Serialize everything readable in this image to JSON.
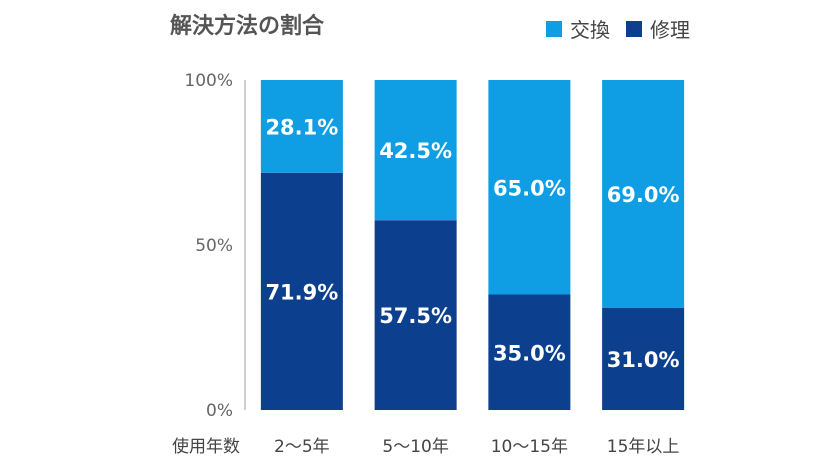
{
  "chart_data": {
    "type": "bar",
    "stacked": true,
    "percent": true,
    "title": "解決方法の割合",
    "xlabel": "使用年数",
    "ylabel": "",
    "ylim": [
      0,
      100
    ],
    "yticks": [
      "0%",
      "50%",
      "100%"
    ],
    "categories": [
      "2〜5年",
      "5〜10年",
      "10〜15年",
      "15年以上"
    ],
    "series": [
      {
        "name": "修理",
        "color": "#0d3f8f",
        "values": [
          71.9,
          57.5,
          35.0,
          31.0
        ],
        "labels": [
          "71.9%",
          "57.5%",
          "35.0%",
          "31.0%"
        ]
      },
      {
        "name": "交換",
        "color": "#0f9ee3",
        "values": [
          28.1,
          42.5,
          65.0,
          69.0
        ],
        "labels": [
          "28.1%",
          "42.5%",
          "65.0%",
          "69.0%"
        ]
      }
    ],
    "legend_order": [
      "交換",
      "修理"
    ],
    "legend": "top-right",
    "grid": false
  }
}
